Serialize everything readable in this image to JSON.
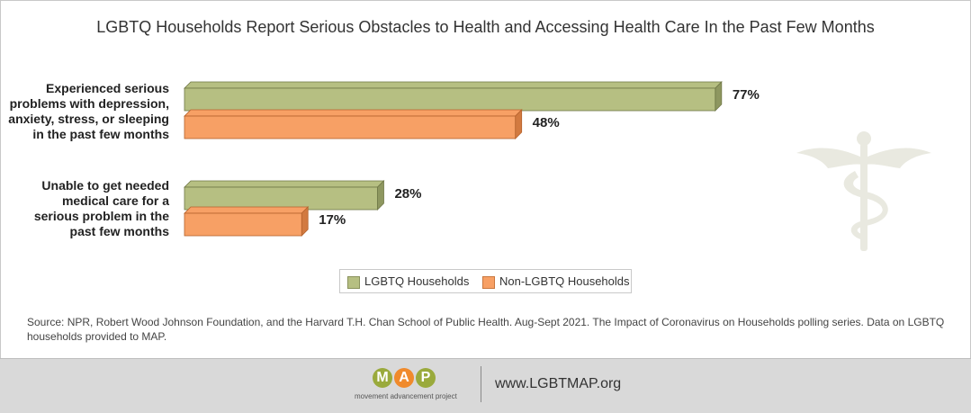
{
  "chart_data": {
    "type": "bar",
    "orientation": "horizontal",
    "title": "LGBTQ Households Report Serious Obstacles to Health and Accessing Health Care In the Past Few Months",
    "categories": [
      [
        "Experienced serious",
        "problems with depression,",
        "anxiety, stress, or sleeping",
        "in the past few months"
      ],
      [
        "Unable to get needed",
        "medical care for a",
        "serious problem in the",
        "past few months"
      ]
    ],
    "series": [
      {
        "name": "LGBTQ Households",
        "values": [
          77,
          28
        ],
        "labels": [
          "77%",
          "28%"
        ],
        "color": "#b6bf82"
      },
      {
        "name": "Non-LGBTQ Households",
        "values": [
          48,
          17
        ],
        "labels": [
          "48%",
          "17%"
        ],
        "color": "#f7a065"
      }
    ],
    "xlim": [
      0,
      100
    ],
    "legend_position": "bottom",
    "grid": false,
    "source": "Source: NPR, Robert Wood Johnson Foundation, and the Harvard T.H. Chan School of Public Health. Aug-Sept 2021. The Impact of Coronavirus on Households polling series. Data on LGBTQ households provided to MAP."
  },
  "footer": {
    "logo_text": "MAP",
    "logo_letters": [
      "M",
      "A",
      "P"
    ],
    "logo_subtitle": "movement advancement project",
    "url": "www.LGBTMAP.org"
  },
  "colors": {
    "lgbtq": "#b6bf82",
    "non_lgbtq": "#f7a065",
    "logo_m": "#9aaa3c",
    "logo_a": "#f08a2c",
    "logo_p": "#9aaa3c"
  },
  "icons": {
    "watermark": "caduceus-icon"
  }
}
